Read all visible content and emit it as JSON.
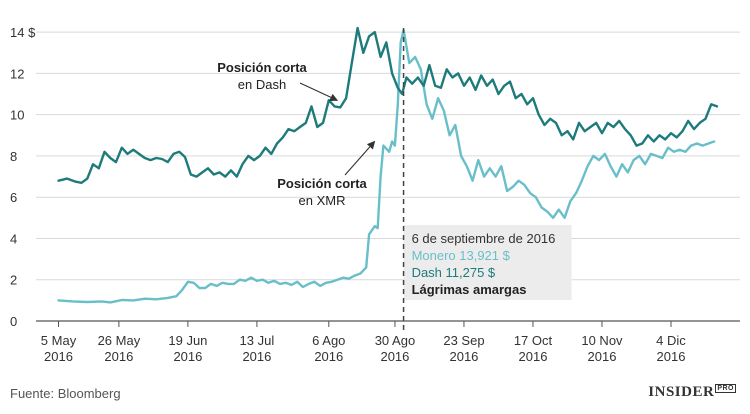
{
  "chart_data": {
    "type": "line",
    "y_axis": {
      "ticks": [
        "0",
        "2",
        "4",
        "6",
        "8",
        "10",
        "12",
        "14 $"
      ],
      "tick_values": [
        0,
        2,
        4,
        6,
        8,
        10,
        12,
        14
      ],
      "ylim": [
        0,
        14.2
      ],
      "grid": true
    },
    "x_axis": {
      "tick_days": [
        0,
        21,
        45,
        69,
        94,
        117,
        141,
        165,
        189,
        213
      ],
      "tick_labels": [
        [
          "5 May",
          "2016"
        ],
        [
          "26 May",
          "2016"
        ],
        [
          "19 Jun",
          "2016"
        ],
        [
          "13 Jul",
          "2016"
        ],
        [
          "6 Ago",
          "2016"
        ],
        [
          "30 Ago",
          "2016"
        ],
        [
          "23 Sep",
          "2016"
        ],
        [
          "17 Oct",
          "2016"
        ],
        [
          "10 Nov",
          "2016"
        ],
        [
          "4 Dic",
          "2016"
        ]
      ],
      "xlim": [
        -4,
        237
      ]
    },
    "series": [
      {
        "name": "Dash",
        "color": "#1e7b7b",
        "points": [
          [
            0,
            6.8
          ],
          [
            3,
            6.9
          ],
          [
            6,
            6.75
          ],
          [
            8,
            6.7
          ],
          [
            10,
            6.9
          ],
          [
            12,
            7.6
          ],
          [
            14,
            7.4
          ],
          [
            16,
            8.2
          ],
          [
            18,
            7.9
          ],
          [
            20,
            7.7
          ],
          [
            22,
            8.4
          ],
          [
            24,
            8.1
          ],
          [
            26,
            8.3
          ],
          [
            28,
            8.1
          ],
          [
            30,
            7.9
          ],
          [
            32,
            7.8
          ],
          [
            34,
            7.9
          ],
          [
            36,
            7.85
          ],
          [
            38,
            7.7
          ],
          [
            40,
            8.1
          ],
          [
            42,
            8.2
          ],
          [
            44,
            7.95
          ],
          [
            46,
            7.1
          ],
          [
            48,
            7.0
          ],
          [
            50,
            7.2
          ],
          [
            52,
            7.4
          ],
          [
            54,
            7.1
          ],
          [
            56,
            7.2
          ],
          [
            58,
            7.0
          ],
          [
            60,
            7.3
          ],
          [
            62,
            7.0
          ],
          [
            64,
            7.6
          ],
          [
            66,
            8.0
          ],
          [
            68,
            7.8
          ],
          [
            70,
            8.0
          ],
          [
            72,
            8.4
          ],
          [
            74,
            8.1
          ],
          [
            76,
            8.6
          ],
          [
            78,
            8.9
          ],
          [
            80,
            9.3
          ],
          [
            82,
            9.2
          ],
          [
            84,
            9.4
          ],
          [
            86,
            9.6
          ],
          [
            88,
            10.4
          ],
          [
            90,
            9.4
          ],
          [
            92,
            9.6
          ],
          [
            94,
            10.7
          ],
          [
            96,
            10.4
          ],
          [
            98,
            10.35
          ],
          [
            100,
            10.8
          ],
          [
            102,
            12.5
          ],
          [
            104,
            14.2
          ],
          [
            106,
            13.0
          ],
          [
            108,
            13.8
          ],
          [
            110,
            14.0
          ],
          [
            112,
            12.8
          ],
          [
            114,
            13.5
          ],
          [
            116,
            12.0
          ],
          [
            118,
            11.3
          ],
          [
            119.5,
            11.0
          ],
          [
            121,
            11.8
          ],
          [
            123,
            11.5
          ],
          [
            125,
            11.8
          ],
          [
            127,
            11.4
          ],
          [
            129,
            12.4
          ],
          [
            131,
            11.4
          ],
          [
            133,
            11.3
          ],
          [
            135,
            12.2
          ],
          [
            137,
            11.8
          ],
          [
            139,
            12.0
          ],
          [
            141,
            11.4
          ],
          [
            143,
            11.8
          ],
          [
            145,
            11.2
          ],
          [
            147,
            11.9
          ],
          [
            149,
            11.4
          ],
          [
            151,
            11.7
          ],
          [
            153,
            11.0
          ],
          [
            155,
            11.4
          ],
          [
            157,
            11.6
          ],
          [
            159,
            10.8
          ],
          [
            161,
            11.0
          ],
          [
            163,
            10.5
          ],
          [
            165,
            10.8
          ],
          [
            167,
            10.0
          ],
          [
            169,
            9.5
          ],
          [
            171,
            9.8
          ],
          [
            173,
            9.6
          ],
          [
            175,
            9.0
          ],
          [
            177,
            9.2
          ],
          [
            179,
            8.8
          ],
          [
            181,
            9.6
          ],
          [
            183,
            9.2
          ],
          [
            185,
            9.4
          ],
          [
            187,
            9.6
          ],
          [
            189,
            9.1
          ],
          [
            191,
            9.6
          ],
          [
            193,
            9.4
          ],
          [
            195,
            9.7
          ],
          [
            197,
            9.3
          ],
          [
            199,
            9.0
          ],
          [
            201,
            8.5
          ],
          [
            203,
            8.6
          ],
          [
            205,
            9.0
          ],
          [
            207,
            8.7
          ],
          [
            209,
            9.0
          ],
          [
            211,
            8.8
          ],
          [
            213,
            9.1
          ],
          [
            215,
            8.9
          ],
          [
            217,
            9.2
          ],
          [
            219,
            9.7
          ],
          [
            221,
            9.3
          ],
          [
            223,
            9.6
          ],
          [
            225,
            9.8
          ],
          [
            227,
            10.5
          ],
          [
            229,
            10.4
          ]
        ]
      },
      {
        "name": "Monero",
        "color": "#69bfc9",
        "points": [
          [
            0,
            1.0
          ],
          [
            5,
            0.95
          ],
          [
            10,
            0.92
          ],
          [
            15,
            0.95
          ],
          [
            18,
            0.9
          ],
          [
            22,
            1.02
          ],
          [
            26,
            1.0
          ],
          [
            30,
            1.08
          ],
          [
            34,
            1.05
          ],
          [
            38,
            1.12
          ],
          [
            41,
            1.2
          ],
          [
            43,
            1.5
          ],
          [
            45,
            1.9
          ],
          [
            47,
            1.85
          ],
          [
            49,
            1.6
          ],
          [
            51,
            1.6
          ],
          [
            53,
            1.8
          ],
          [
            55,
            1.7
          ],
          [
            57,
            1.85
          ],
          [
            59,
            1.8
          ],
          [
            61,
            1.8
          ],
          [
            63,
            2.0
          ],
          [
            65,
            1.95
          ],
          [
            67,
            2.1
          ],
          [
            69,
            1.95
          ],
          [
            71,
            2.0
          ],
          [
            73,
            1.85
          ],
          [
            75,
            1.95
          ],
          [
            77,
            1.8
          ],
          [
            79,
            1.85
          ],
          [
            81,
            1.75
          ],
          [
            83,
            1.9
          ],
          [
            85,
            1.65
          ],
          [
            87,
            1.8
          ],
          [
            89,
            1.9
          ],
          [
            91,
            1.7
          ],
          [
            93,
            1.85
          ],
          [
            95,
            1.9
          ],
          [
            97,
            2.0
          ],
          [
            99,
            2.1
          ],
          [
            101,
            2.05
          ],
          [
            103,
            2.2
          ],
          [
            105,
            2.3
          ],
          [
            107,
            2.6
          ],
          [
            108,
            4.2
          ],
          [
            110,
            4.6
          ],
          [
            111,
            4.5
          ],
          [
            112,
            7.0
          ],
          [
            113,
            8.5
          ],
          [
            115,
            8.2
          ],
          [
            116,
            8.7
          ],
          [
            117,
            8.5
          ],
          [
            118,
            10.5
          ],
          [
            119,
            13.5
          ],
          [
            120,
            14.1
          ],
          [
            122,
            12.5
          ],
          [
            124,
            12.8
          ],
          [
            126,
            12.2
          ],
          [
            128,
            10.5
          ],
          [
            130,
            9.8
          ],
          [
            132,
            10.8
          ],
          [
            134,
            10.2
          ],
          [
            136,
            9.0
          ],
          [
            138,
            9.5
          ],
          [
            140,
            8.0
          ],
          [
            142,
            7.5
          ],
          [
            144,
            6.8
          ],
          [
            146,
            7.8
          ],
          [
            148,
            7.0
          ],
          [
            150,
            7.4
          ],
          [
            152,
            7.0
          ],
          [
            154,
            7.5
          ],
          [
            156,
            6.3
          ],
          [
            158,
            6.5
          ],
          [
            160,
            6.8
          ],
          [
            162,
            6.6
          ],
          [
            164,
            6.2
          ],
          [
            166,
            6.0
          ],
          [
            168,
            5.5
          ],
          [
            170,
            5.3
          ],
          [
            172,
            5.0
          ],
          [
            174,
            5.4
          ],
          [
            176,
            5.0
          ],
          [
            178,
            5.8
          ],
          [
            180,
            6.2
          ],
          [
            182,
            6.8
          ],
          [
            184,
            7.5
          ],
          [
            186,
            8.0
          ],
          [
            188,
            7.8
          ],
          [
            190,
            8.1
          ],
          [
            192,
            7.5
          ],
          [
            194,
            7.0
          ],
          [
            196,
            7.6
          ],
          [
            198,
            7.2
          ],
          [
            200,
            7.8
          ],
          [
            202,
            8.0
          ],
          [
            204,
            7.6
          ],
          [
            206,
            8.1
          ],
          [
            208,
            8.0
          ],
          [
            210,
            7.9
          ],
          [
            212,
            8.4
          ],
          [
            214,
            8.2
          ],
          [
            216,
            8.3
          ],
          [
            218,
            8.2
          ],
          [
            220,
            8.5
          ],
          [
            222,
            8.6
          ],
          [
            224,
            8.5
          ],
          [
            226,
            8.6
          ],
          [
            228,
            8.7
          ]
        ]
      }
    ],
    "event_day": 120,
    "annotations": [
      {
        "lines": [
          "Posición corta",
          "en Dash"
        ],
        "target_series": "Dash",
        "target_day": 99,
        "target_value": 10.6
      },
      {
        "lines": [
          "Posición corta",
          "en XMR"
        ],
        "target_series": "Monero",
        "target_day": 112,
        "target_value": 8.6
      }
    ],
    "info_box": {
      "date": "6 de septiembre de 2016",
      "monero": "Monero 13,921 $",
      "dash": "Dash 11,275 $",
      "note": "Lágrimas amargas"
    }
  },
  "footer": {
    "source": "Fuente: Bloomberg",
    "brand": "INSIDER",
    "brand_suffix": "PRO"
  }
}
